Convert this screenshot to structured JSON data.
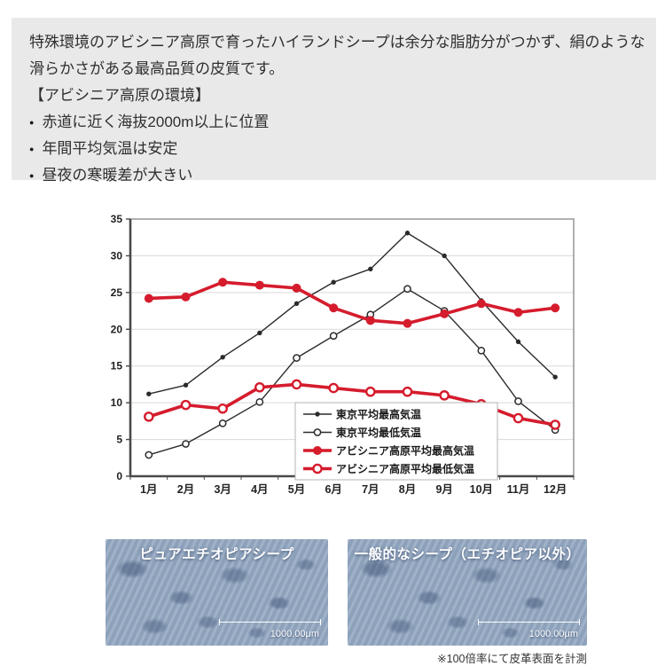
{
  "icons": {
    "bullet": "●"
  },
  "info_box": {
    "bg": "#e9e9e9",
    "lines": [
      "特殊環境のアビシニア高原で育ったハイランドシープは余分な脂肪分がつかず、絹のような",
      "滑らかさがある最高品質の皮質です。",
      "【アビシニア高原の環境】"
    ],
    "bullets": [
      "赤道に近く海抜2000m以上に位置",
      "年間平均気温は安定",
      "昼夜の寒暖差が大きい"
    ]
  },
  "chart_data": {
    "type": "line",
    "title": "",
    "xlabel": "",
    "ylabel": "",
    "ylim": [
      0,
      35
    ],
    "ytick_step": 5,
    "grid": true,
    "legend_position": "inside-bottom-center",
    "categories": [
      "1月",
      "2月",
      "3月",
      "4月",
      "5月",
      "6月",
      "7月",
      "8月",
      "9月",
      "10月",
      "11月",
      "12月"
    ],
    "series": [
      {
        "name": "東京平均最高気温",
        "color": "#2b2b2b",
        "marker": "dot",
        "line_width": 1.4,
        "values": [
          11.2,
          12.4,
          16.2,
          19.5,
          23.5,
          26.4,
          28.2,
          33.1,
          30.0,
          23.9,
          18.3,
          13.5
        ]
      },
      {
        "name": "東京平均最低気温",
        "color": "#2b2b2b",
        "marker": "circle",
        "line_width": 1.4,
        "values": [
          2.9,
          4.4,
          7.2,
          10.1,
          16.1,
          19.1,
          22.0,
          25.5,
          22.5,
          17.1,
          10.2,
          6.3
        ]
      },
      {
        "name": "アビシニア高原平均最高気温",
        "color": "#d51c2d",
        "marker": "dot-large",
        "line_width": 3.6,
        "values": [
          24.2,
          24.4,
          26.4,
          26.0,
          25.6,
          22.9,
          21.2,
          20.8,
          22.1,
          23.5,
          22.3,
          22.9
        ]
      },
      {
        "name": "アビシニア高原平均最低気温",
        "color": "#d51c2d",
        "marker": "circle-large",
        "line_width": 3.6,
        "values": [
          8.1,
          9.7,
          9.2,
          12.1,
          12.5,
          12.0,
          11.5,
          11.5,
          11.0,
          9.8,
          7.9,
          7.0
        ]
      }
    ]
  },
  "micrographs": {
    "left": {
      "title": "ピュアエチオピアシープ",
      "scale_label": "1000.00μm"
    },
    "right": {
      "title": "一般的なシープ（エチオピア以外）",
      "scale_label": "1000.00μm"
    },
    "caption": "※100倍率にて皮革表面を計測"
  }
}
